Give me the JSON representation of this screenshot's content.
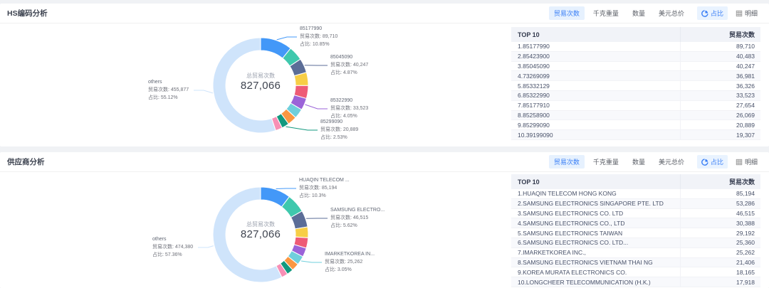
{
  "panels": [
    {
      "title": "HS编码分析",
      "toolbar": {
        "metrics": [
          "贸易次数",
          "千克重量",
          "数量",
          "美元总价"
        ],
        "active_metric": "贸易次数",
        "views": [
          {
            "label": "占比",
            "icon": "pie-chart-icon",
            "active": true
          },
          {
            "label": "明细",
            "icon": "grid-icon",
            "active": false
          }
        ]
      },
      "chart_data": {
        "type": "pie",
        "center_label": "总贸易次数",
        "total": 827066,
        "total_display": "827,066",
        "others_color": "#cfe4fb",
        "segments": [
          {
            "name": "85177990",
            "value": 89710,
            "pct": "10.85%",
            "color": "#4398f8"
          },
          {
            "name": "85423900",
            "value": 40483,
            "pct": "4.89%",
            "color": "#3fc8ad"
          },
          {
            "name": "85045090",
            "value": 40247,
            "pct": "4.87%",
            "color": "#5b6d97"
          },
          {
            "name": "73269099",
            "value": 36981,
            "pct": "4.47%",
            "color": "#f7ce46"
          },
          {
            "name": "85332129",
            "value": 36326,
            "pct": "4.39%",
            "color": "#ee5b76"
          },
          {
            "name": "85322990",
            "value": 33523,
            "pct": "4.05%",
            "color": "#9b63d8"
          },
          {
            "name": "85177910",
            "value": 27654,
            "pct": "3.34%",
            "color": "#6fcfdc"
          },
          {
            "name": "85258900",
            "value": 26069,
            "pct": "3.15%",
            "color": "#fa9742"
          },
          {
            "name": "85299090",
            "value": 20889,
            "pct": "2.53%",
            "color": "#12997f"
          },
          {
            "name": "39199090",
            "value": 19307,
            "pct": "2.33%",
            "color": "#f78fb5"
          },
          {
            "name": "others",
            "value": 455877,
            "pct": "55.12%",
            "color": "#cfe4fb"
          }
        ],
        "callouts": [
          {
            "seg": 0,
            "name": "85177990",
            "count_text": "贸易次数: 89,710",
            "pct_text": "占比: 10.85%"
          },
          {
            "seg": 2,
            "name": "85045090",
            "count_text": "贸易次数: 40,247",
            "pct_text": "占比: 4.87%"
          },
          {
            "seg": 5,
            "name": "85322990",
            "count_text": "贸易次数: 33,523",
            "pct_text": "占比: 4.05%"
          },
          {
            "seg": 8,
            "name": "85299090",
            "count_text": "贸易次数: 20,889",
            "pct_text": "占比: 2.53%"
          },
          {
            "seg": 10,
            "name": "others",
            "count_text": "贸易次数: 455,877",
            "pct_text": "占比: 55.12%"
          }
        ]
      },
      "table": {
        "headers": [
          "TOP 10",
          "贸易次数"
        ],
        "rows": [
          {
            "name": "1.85177990",
            "value": "89,710"
          },
          {
            "name": "2.85423900",
            "value": "40,483"
          },
          {
            "name": "3.85045090",
            "value": "40,247"
          },
          {
            "name": "4.73269099",
            "value": "36,981"
          },
          {
            "name": "5.85332129",
            "value": "36,326"
          },
          {
            "name": "6.85322990",
            "value": "33,523"
          },
          {
            "name": "7.85177910",
            "value": "27,654"
          },
          {
            "name": "8.85258900",
            "value": "26,069"
          },
          {
            "name": "9.85299090",
            "value": "20,889"
          },
          {
            "name": "10.39199090",
            "value": "19,307"
          }
        ]
      }
    },
    {
      "title": "供应商分析",
      "toolbar": {
        "metrics": [
          "贸易次数",
          "千克重量",
          "数量",
          "美元总价"
        ],
        "active_metric": "贸易次数",
        "views": [
          {
            "label": "占比",
            "icon": "pie-chart-icon",
            "active": true
          },
          {
            "label": "明细",
            "icon": "grid-icon",
            "active": false
          }
        ]
      },
      "chart_data": {
        "type": "pie",
        "center_label": "总贸易次数",
        "total": 827066,
        "total_display": "827,066",
        "others_color": "#cfe4fb",
        "segments": [
          {
            "name": "HUAQIN TELECOM HONG KONG",
            "value": 85194,
            "pct": "10.3%",
            "color": "#4398f8"
          },
          {
            "name": "SAMSUNG ELECTRONICS SINGAPORE PTE. LTD",
            "value": 53286,
            "pct": "6.44%",
            "color": "#3fc8ad"
          },
          {
            "name": "SAMSUNG ELECTRONICS CO. LTD",
            "value": 46515,
            "pct": "5.62%",
            "color": "#5b6d97"
          },
          {
            "name": "SAMSUNG ELECTRONICS CO., LTD",
            "value": 30388,
            "pct": "3.67%",
            "color": "#f7ce46"
          },
          {
            "name": "SAMSUNG ELECTRONICS TAIWAN",
            "value": 29192,
            "pct": "3.53%",
            "color": "#ee5b76"
          },
          {
            "name": "SAMSUNG ELECTRONICS CO. LTD...",
            "value": 25360,
            "pct": "3.07%",
            "color": "#9b63d8"
          },
          {
            "name": "IMARKETKOREA INC.,",
            "value": 25262,
            "pct": "3.05%",
            "color": "#6fcfdc"
          },
          {
            "name": "SAMSUNG ELECTRONICS VIETNAM THAI NG",
            "value": 21406,
            "pct": "2.59%",
            "color": "#fa9742"
          },
          {
            "name": "KOREA MURATA ELECTRONICS CO.",
            "value": 18165,
            "pct": "2.20%",
            "color": "#12997f"
          },
          {
            "name": "LONGCHEER TELECOMMUNICATION (H.K.)",
            "value": 17918,
            "pct": "2.17%",
            "color": "#f78fb5"
          },
          {
            "name": "others",
            "value": 474380,
            "pct": "57.36%",
            "color": "#cfe4fb"
          }
        ],
        "callouts": [
          {
            "seg": 0,
            "name": "HUAQIN TELECOM ...",
            "count_text": "贸易次数: 85,194",
            "pct_text": "占比: 10.3%"
          },
          {
            "seg": 2,
            "name": "SAMSUNG ELECTRO...",
            "count_text": "贸易次数: 46,515",
            "pct_text": "占比: 5.62%"
          },
          {
            "seg": 6,
            "name": "IMARKETKOREA IN...",
            "count_text": "贸易次数: 25,262",
            "pct_text": "占比: 3.05%"
          },
          {
            "seg": 10,
            "name": "others",
            "count_text": "贸易次数: 474,380",
            "pct_text": "占比: 57.36%"
          }
        ]
      },
      "table": {
        "headers": [
          "TOP 10",
          "贸易次数"
        ],
        "rows": [
          {
            "name": "1.HUAQIN TELECOM HONG KONG",
            "value": "85,194"
          },
          {
            "name": "2.SAMSUNG ELECTRONICS SINGAPORE PTE. LTD",
            "value": "53,286"
          },
          {
            "name": "3.SAMSUNG ELECTRONICS CO. LTD",
            "value": "46,515"
          },
          {
            "name": "4.SAMSUNG ELECTRONICS CO., LTD",
            "value": "30,388"
          },
          {
            "name": "5.SAMSUNG ELECTRONICS TAIWAN",
            "value": "29,192"
          },
          {
            "name": "6.SAMSUNG ELECTRONICS CO. LTD...",
            "value": "25,360"
          },
          {
            "name": "7.IMARKETKOREA INC.,",
            "value": "25,262"
          },
          {
            "name": "8.SAMSUNG ELECTRONICS VIETNAM THAI NG",
            "value": "21,406"
          },
          {
            "name": "9.KOREA MURATA ELECTRONICS CO.",
            "value": "18,165"
          },
          {
            "name": "10.LONGCHEER TELECOMMUNICATION (H.K.)",
            "value": "17,918"
          }
        ]
      }
    }
  ]
}
